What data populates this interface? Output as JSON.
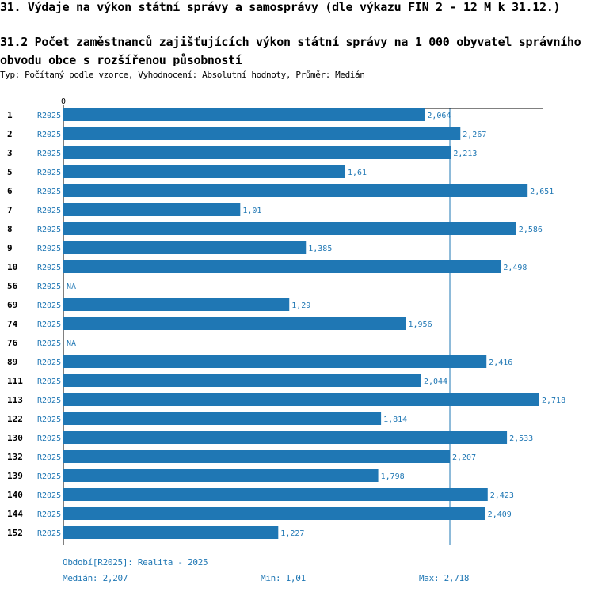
{
  "heading": "31. Výdaje na výkon státní správy a samosprávy (dle výkazu FIN 2 - 12 M k 31.12.)",
  "subheading": "31.2 Počet zaměstnanců zajišťujících výkon státní správy na 1 000 obyvatel správního obvodu obce s rozšířenou působností",
  "typeline": "Typ: Počítaný podle vzorce, Vyhodnocení: Absolutní hodnoty, Průměr: Medián",
  "chart_data": {
    "type": "bar",
    "orientation": "horizontal",
    "axis_zero_label": "0",
    "xlim": [
      0,
      2.718
    ],
    "median_line": 2.207,
    "categories": [
      "1",
      "2",
      "3",
      "5",
      "6",
      "7",
      "8",
      "9",
      "10",
      "56",
      "69",
      "74",
      "76",
      "89",
      "111",
      "113",
      "122",
      "130",
      "132",
      "139",
      "140",
      "144",
      "152"
    ],
    "series_label": "R2025",
    "values": [
      2.064,
      2.267,
      2.213,
      1.61,
      2.651,
      1.01,
      2.586,
      1.385,
      2.498,
      null,
      1.29,
      1.956,
      null,
      2.416,
      2.044,
      2.718,
      1.814,
      2.533,
      2.207,
      1.798,
      2.423,
      2.409,
      1.227
    ],
    "value_labels": [
      "2,064",
      "2,267",
      "2,213",
      "1,61",
      "2,651",
      "1,01",
      "2,586",
      "1,385",
      "2,498",
      "NA",
      "1,29",
      "1,956",
      "NA",
      "2,416",
      "2,044",
      "2,718",
      "1,814",
      "2,533",
      "2,207",
      "1,798",
      "2,423",
      "2,409",
      "1,227"
    ],
    "bar_color": "#1f77b4"
  },
  "footer": {
    "period": "Období[R2025]: Realita - 2025",
    "median": "Medián: 2,207",
    "min": "Min: 1,01",
    "max": "Max: 2,718"
  }
}
